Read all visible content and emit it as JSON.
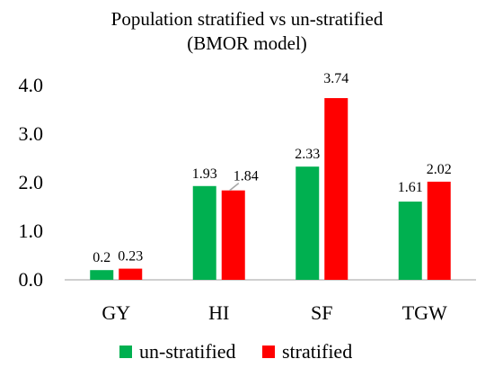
{
  "chart_data": {
    "type": "bar",
    "title_line1": "Population stratified vs un-stratified",
    "title_line2": "(BMOR model)",
    "categories": [
      "GY",
      "HI",
      "SF",
      "TGW"
    ],
    "series": [
      {
        "name": "un-stratified",
        "values": [
          0.2,
          1.93,
          2.33,
          1.61
        ],
        "labels": [
          "0.2",
          "1.93",
          "2.33",
          "1.61"
        ],
        "color": "#00b050"
      },
      {
        "name": "stratified",
        "values": [
          0.23,
          1.84,
          3.74,
          2.02
        ],
        "labels": [
          "0.23",
          "1.84",
          "3.74",
          "2.02"
        ],
        "color": "#ff0000"
      }
    ],
    "yticks": [
      "0.0",
      "1.0",
      "2.0",
      "3.0",
      "4.0"
    ],
    "ylim": [
      0,
      4
    ],
    "grid": false,
    "legend_position": "bottom"
  }
}
